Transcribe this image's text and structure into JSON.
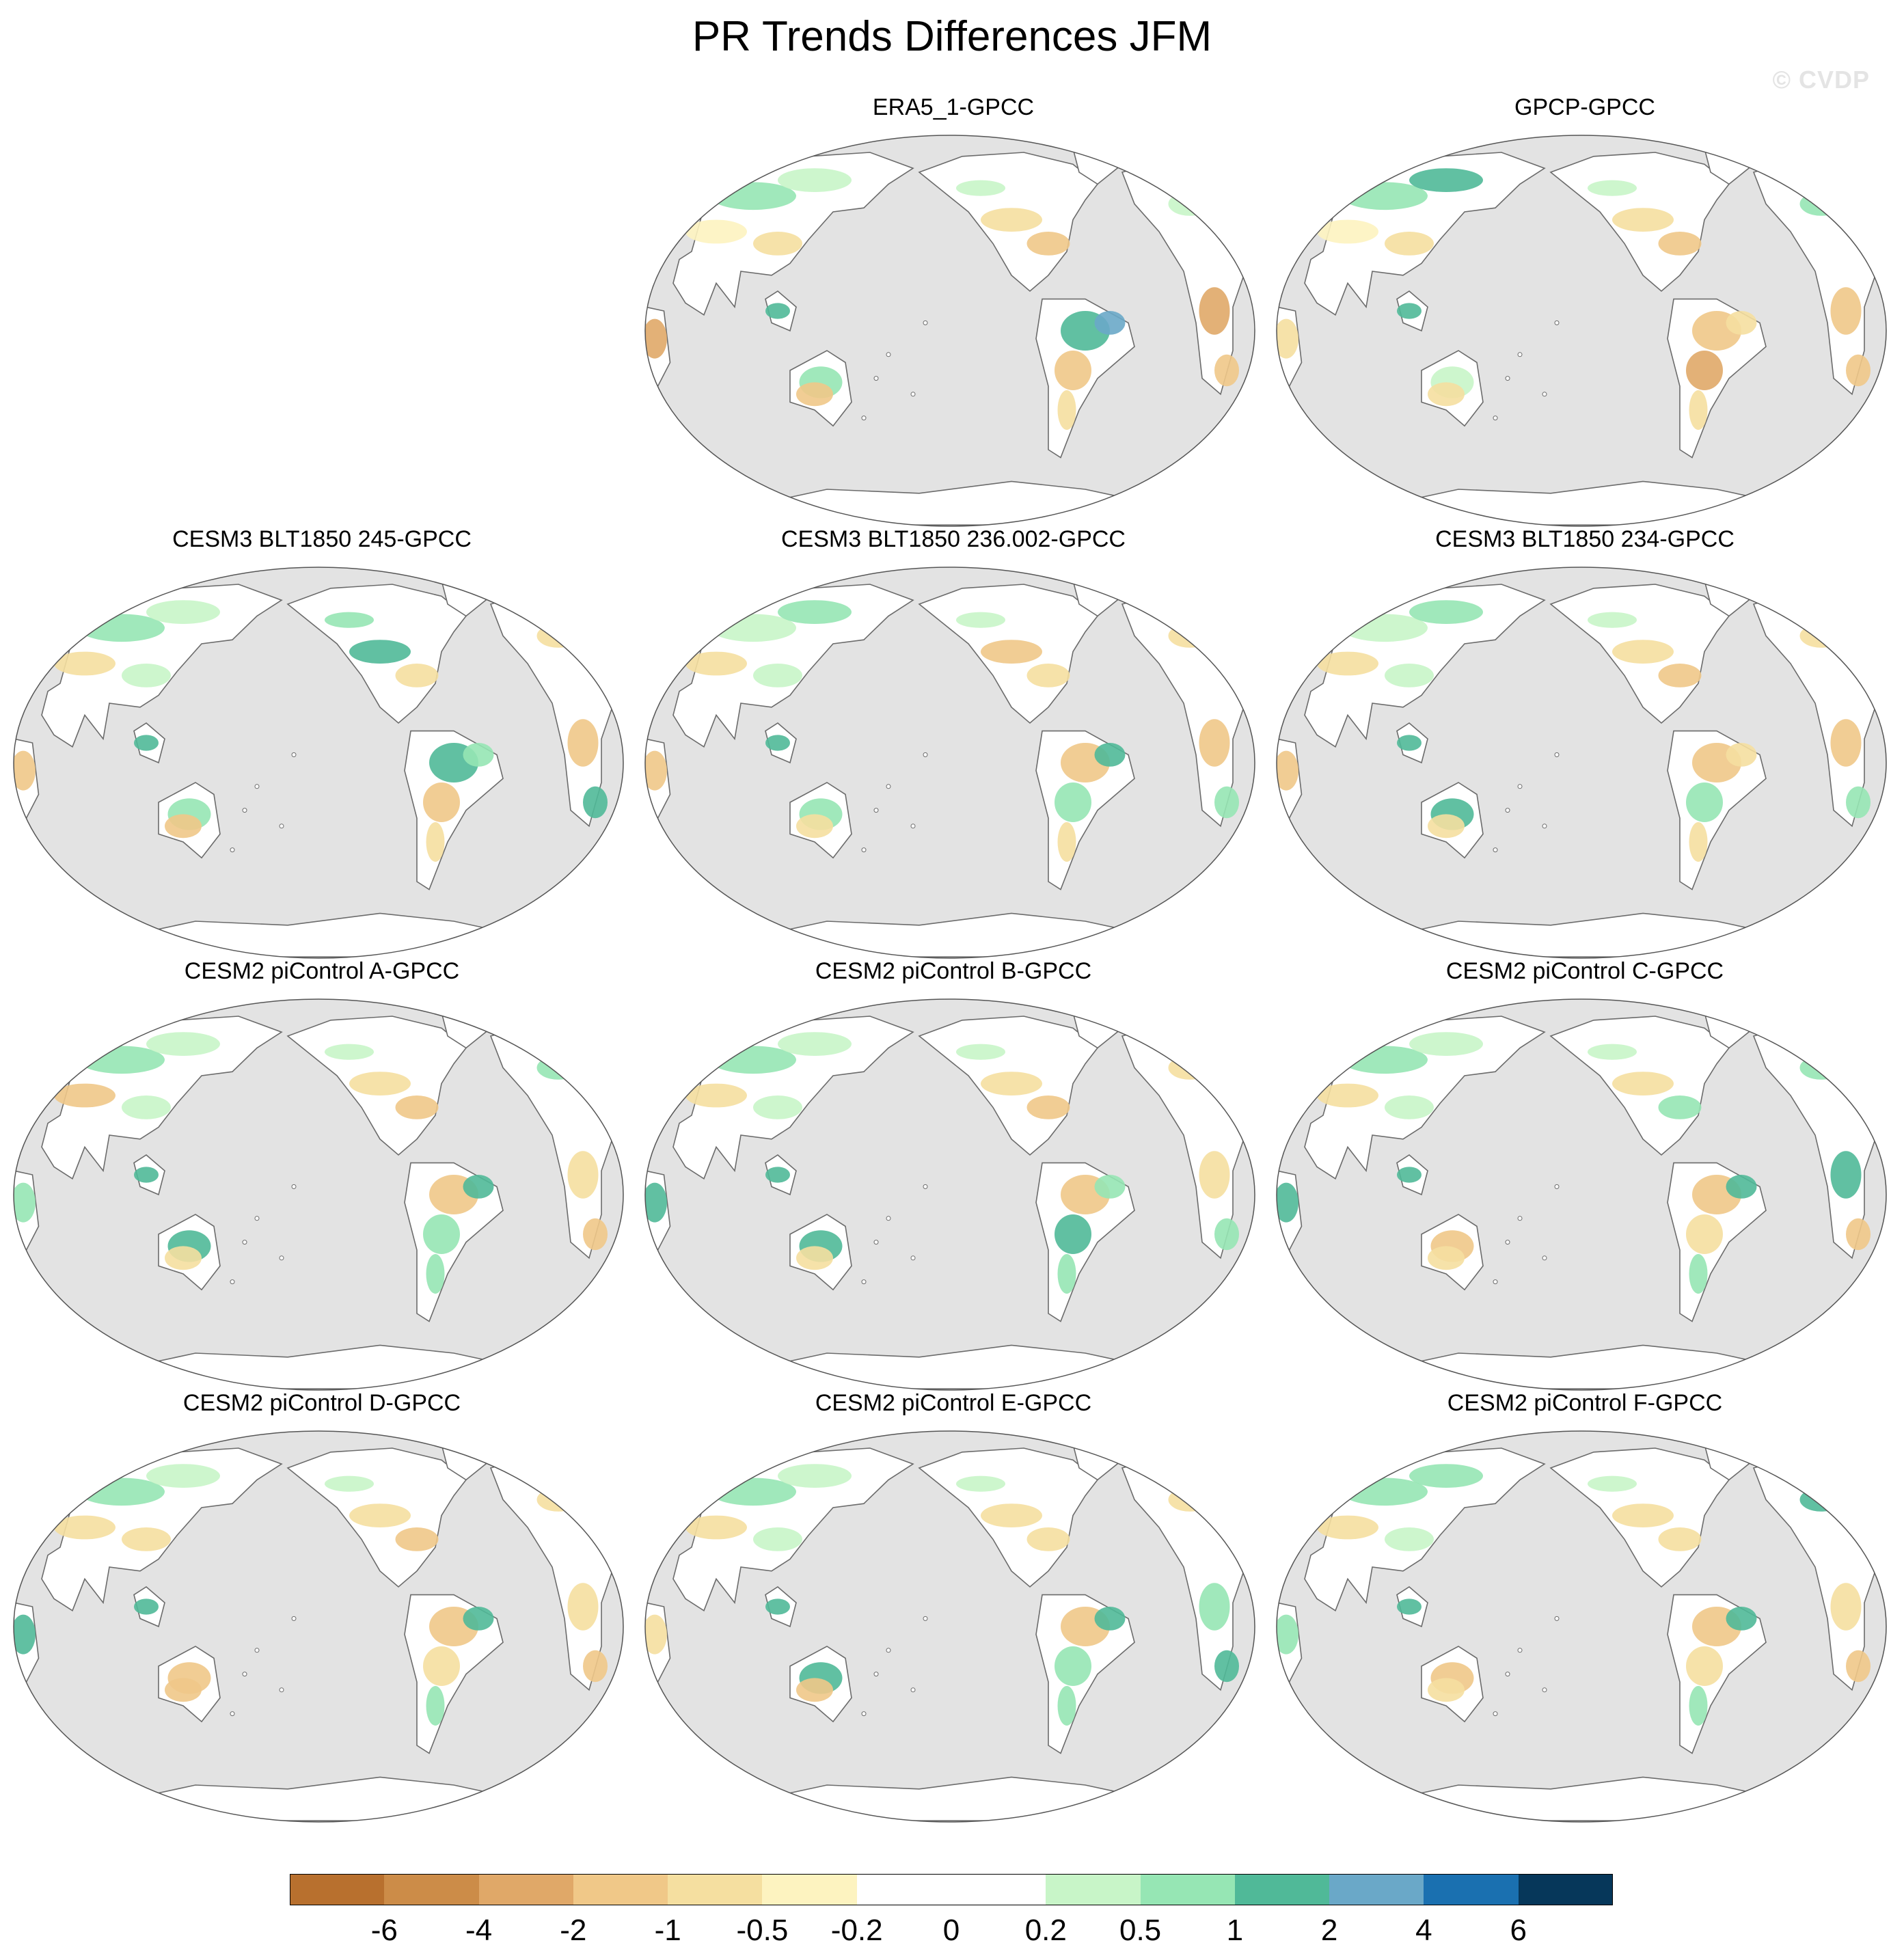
{
  "title": "PR Trends Differences JFM",
  "watermark": "© CVDP",
  "colors": {
    "ocean": "#e3e3e3",
    "land_neutral": "#ffffff",
    "coast": "#6b6b6b"
  },
  "panels": [
    {
      "title": "ERA5_1-GPCC",
      "row": 0,
      "col": 1,
      "variant": 0
    },
    {
      "title": "GPCP-GPCC",
      "row": 0,
      "col": 2,
      "variant": 1
    },
    {
      "title": "CESM3 BLT1850 245-GPCC",
      "row": 1,
      "col": 0,
      "variant": 2
    },
    {
      "title": "CESM3 BLT1850 236.002-GPCC",
      "row": 1,
      "col": 1,
      "variant": 3
    },
    {
      "title": "CESM3 BLT1850 234-GPCC",
      "row": 1,
      "col": 2,
      "variant": 4
    },
    {
      "title": "CESM2 piControl A-GPCC",
      "row": 2,
      "col": 0,
      "variant": 5
    },
    {
      "title": "CESM2 piControl B-GPCC",
      "row": 2,
      "col": 1,
      "variant": 6
    },
    {
      "title": "CESM2 piControl C-GPCC",
      "row": 2,
      "col": 2,
      "variant": 7
    },
    {
      "title": "CESM2 piControl D-GPCC",
      "row": 3,
      "col": 0,
      "variant": 8
    },
    {
      "title": "CESM2 piControl E-GPCC",
      "row": 3,
      "col": 1,
      "variant": 9
    },
    {
      "title": "CESM2 piControl F-GPCC",
      "row": 3,
      "col": 2,
      "variant": 10
    }
  ],
  "colorbar": {
    "colors": [
      "#b8702e",
      "#cc8c48",
      "#e0a868",
      "#f0c888",
      "#f5dfa0",
      "#fdf3c0",
      "#ffffff",
      "#ffffff",
      "#c8f5c8",
      "#96e6b4",
      "#50b998",
      "#6aa8c8",
      "#1a70b0",
      "#06375a"
    ],
    "labels": [
      "-6",
      "-4",
      "-2",
      "-1",
      "-0.5",
      "-0.2",
      "0",
      "0.2",
      "0.5",
      "1",
      "2",
      "4",
      "6"
    ]
  }
}
